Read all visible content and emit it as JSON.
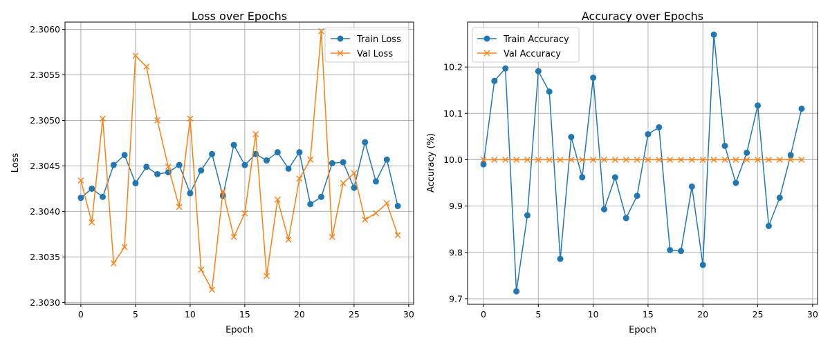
{
  "chart_data": [
    {
      "type": "line",
      "title": "Loss over Epochs",
      "xlabel": "Epoch",
      "ylabel": "Loss",
      "xlim": [
        -1.45,
        30.45
      ],
      "ylim": [
        2.30298,
        2.30608
      ],
      "xticks": [
        0,
        5,
        10,
        15,
        20,
        25,
        30
      ],
      "xtick_labels": [
        "0",
        "5",
        "10",
        "15",
        "20",
        "25",
        "30"
      ],
      "yticks": [
        2.303,
        2.3035,
        2.304,
        2.3045,
        2.305,
        2.3055,
        2.306
      ],
      "ytick_labels": [
        "2.3030",
        "2.3035",
        "2.3040",
        "2.3045",
        "2.3050",
        "2.3055",
        "2.3060"
      ],
      "grid": true,
      "legend_position": "top-right",
      "x": [
        0,
        1,
        2,
        3,
        4,
        5,
        6,
        7,
        8,
        9,
        10,
        11,
        12,
        13,
        14,
        15,
        16,
        17,
        18,
        19,
        20,
        21,
        22,
        23,
        24,
        25,
        26,
        27,
        28,
        29
      ],
      "series": [
        {
          "name": "Train Loss",
          "color": "#1f77b4",
          "marker": "circle",
          "values": [
            2.30415,
            2.30425,
            2.30416,
            2.30451,
            2.30462,
            2.30431,
            2.30449,
            2.30441,
            2.30443,
            2.30451,
            2.3042,
            2.30445,
            2.30463,
            2.30417,
            2.30473,
            2.30451,
            2.30463,
            2.30456,
            2.30465,
            2.30447,
            2.30465,
            2.30408,
            2.30416,
            2.30453,
            2.30454,
            2.30426,
            2.30476,
            2.30433,
            2.30457,
            2.30406
          ]
        },
        {
          "name": "Val Loss",
          "color": "#ff7f0e",
          "marker": "x",
          "values": [
            2.30434,
            2.30388,
            2.30502,
            2.30343,
            2.30361,
            2.30571,
            2.30559,
            2.305,
            2.30449,
            2.30405,
            2.30502,
            2.30336,
            2.30314,
            2.30422,
            2.30372,
            2.30398,
            2.30485,
            2.30329,
            2.30413,
            2.30369,
            2.30436,
            2.30457,
            2.30598,
            2.30372,
            2.30431,
            2.30442,
            2.30391,
            2.30398,
            2.30409,
            2.30374
          ]
        }
      ]
    },
    {
      "type": "line",
      "title": "Accuracy over Epochs",
      "xlabel": "Epoch",
      "ylabel": "Accuracy (%)",
      "xlim": [
        -1.45,
        30.45
      ],
      "ylim": [
        9.688,
        10.297
      ],
      "xticks": [
        0,
        5,
        10,
        15,
        20,
        25,
        30
      ],
      "xtick_labels": [
        "0",
        "5",
        "10",
        "15",
        "20",
        "25",
        "30"
      ],
      "yticks": [
        9.7,
        9.8,
        9.9,
        10.0,
        10.1,
        10.2
      ],
      "ytick_labels": [
        "9.7",
        "9.8",
        "9.9",
        "10.0",
        "10.1",
        "10.2"
      ],
      "grid": true,
      "legend_position": "top-left",
      "x": [
        0,
        1,
        2,
        3,
        4,
        5,
        6,
        7,
        8,
        9,
        10,
        11,
        12,
        13,
        14,
        15,
        16,
        17,
        18,
        19,
        20,
        21,
        22,
        23,
        24,
        25,
        26,
        27,
        28,
        29
      ],
      "series": [
        {
          "name": "Train Accuracy",
          "color": "#1f77b4",
          "marker": "circle",
          "values": [
            9.99,
            10.17,
            10.197,
            9.716,
            9.88,
            10.191,
            10.147,
            9.786,
            10.049,
            9.962,
            10.177,
            9.893,
            9.962,
            9.874,
            9.922,
            10.055,
            10.07,
            9.805,
            9.803,
            9.942,
            9.773,
            10.27,
            10.03,
            9.95,
            10.015,
            10.117,
            9.857,
            9.918,
            10.01,
            10.11
          ]
        },
        {
          "name": "Val Accuracy",
          "color": "#ff7f0e",
          "marker": "x",
          "values": [
            10.0,
            10.0,
            10.0,
            10.0,
            10.0,
            10.0,
            10.0,
            10.0,
            10.0,
            10.0,
            10.0,
            10.0,
            10.0,
            10.0,
            10.0,
            10.0,
            10.0,
            10.0,
            10.0,
            10.0,
            10.0,
            10.0,
            10.0,
            10.0,
            10.0,
            10.0,
            10.0,
            10.0,
            10.0,
            10.0
          ]
        }
      ]
    }
  ]
}
